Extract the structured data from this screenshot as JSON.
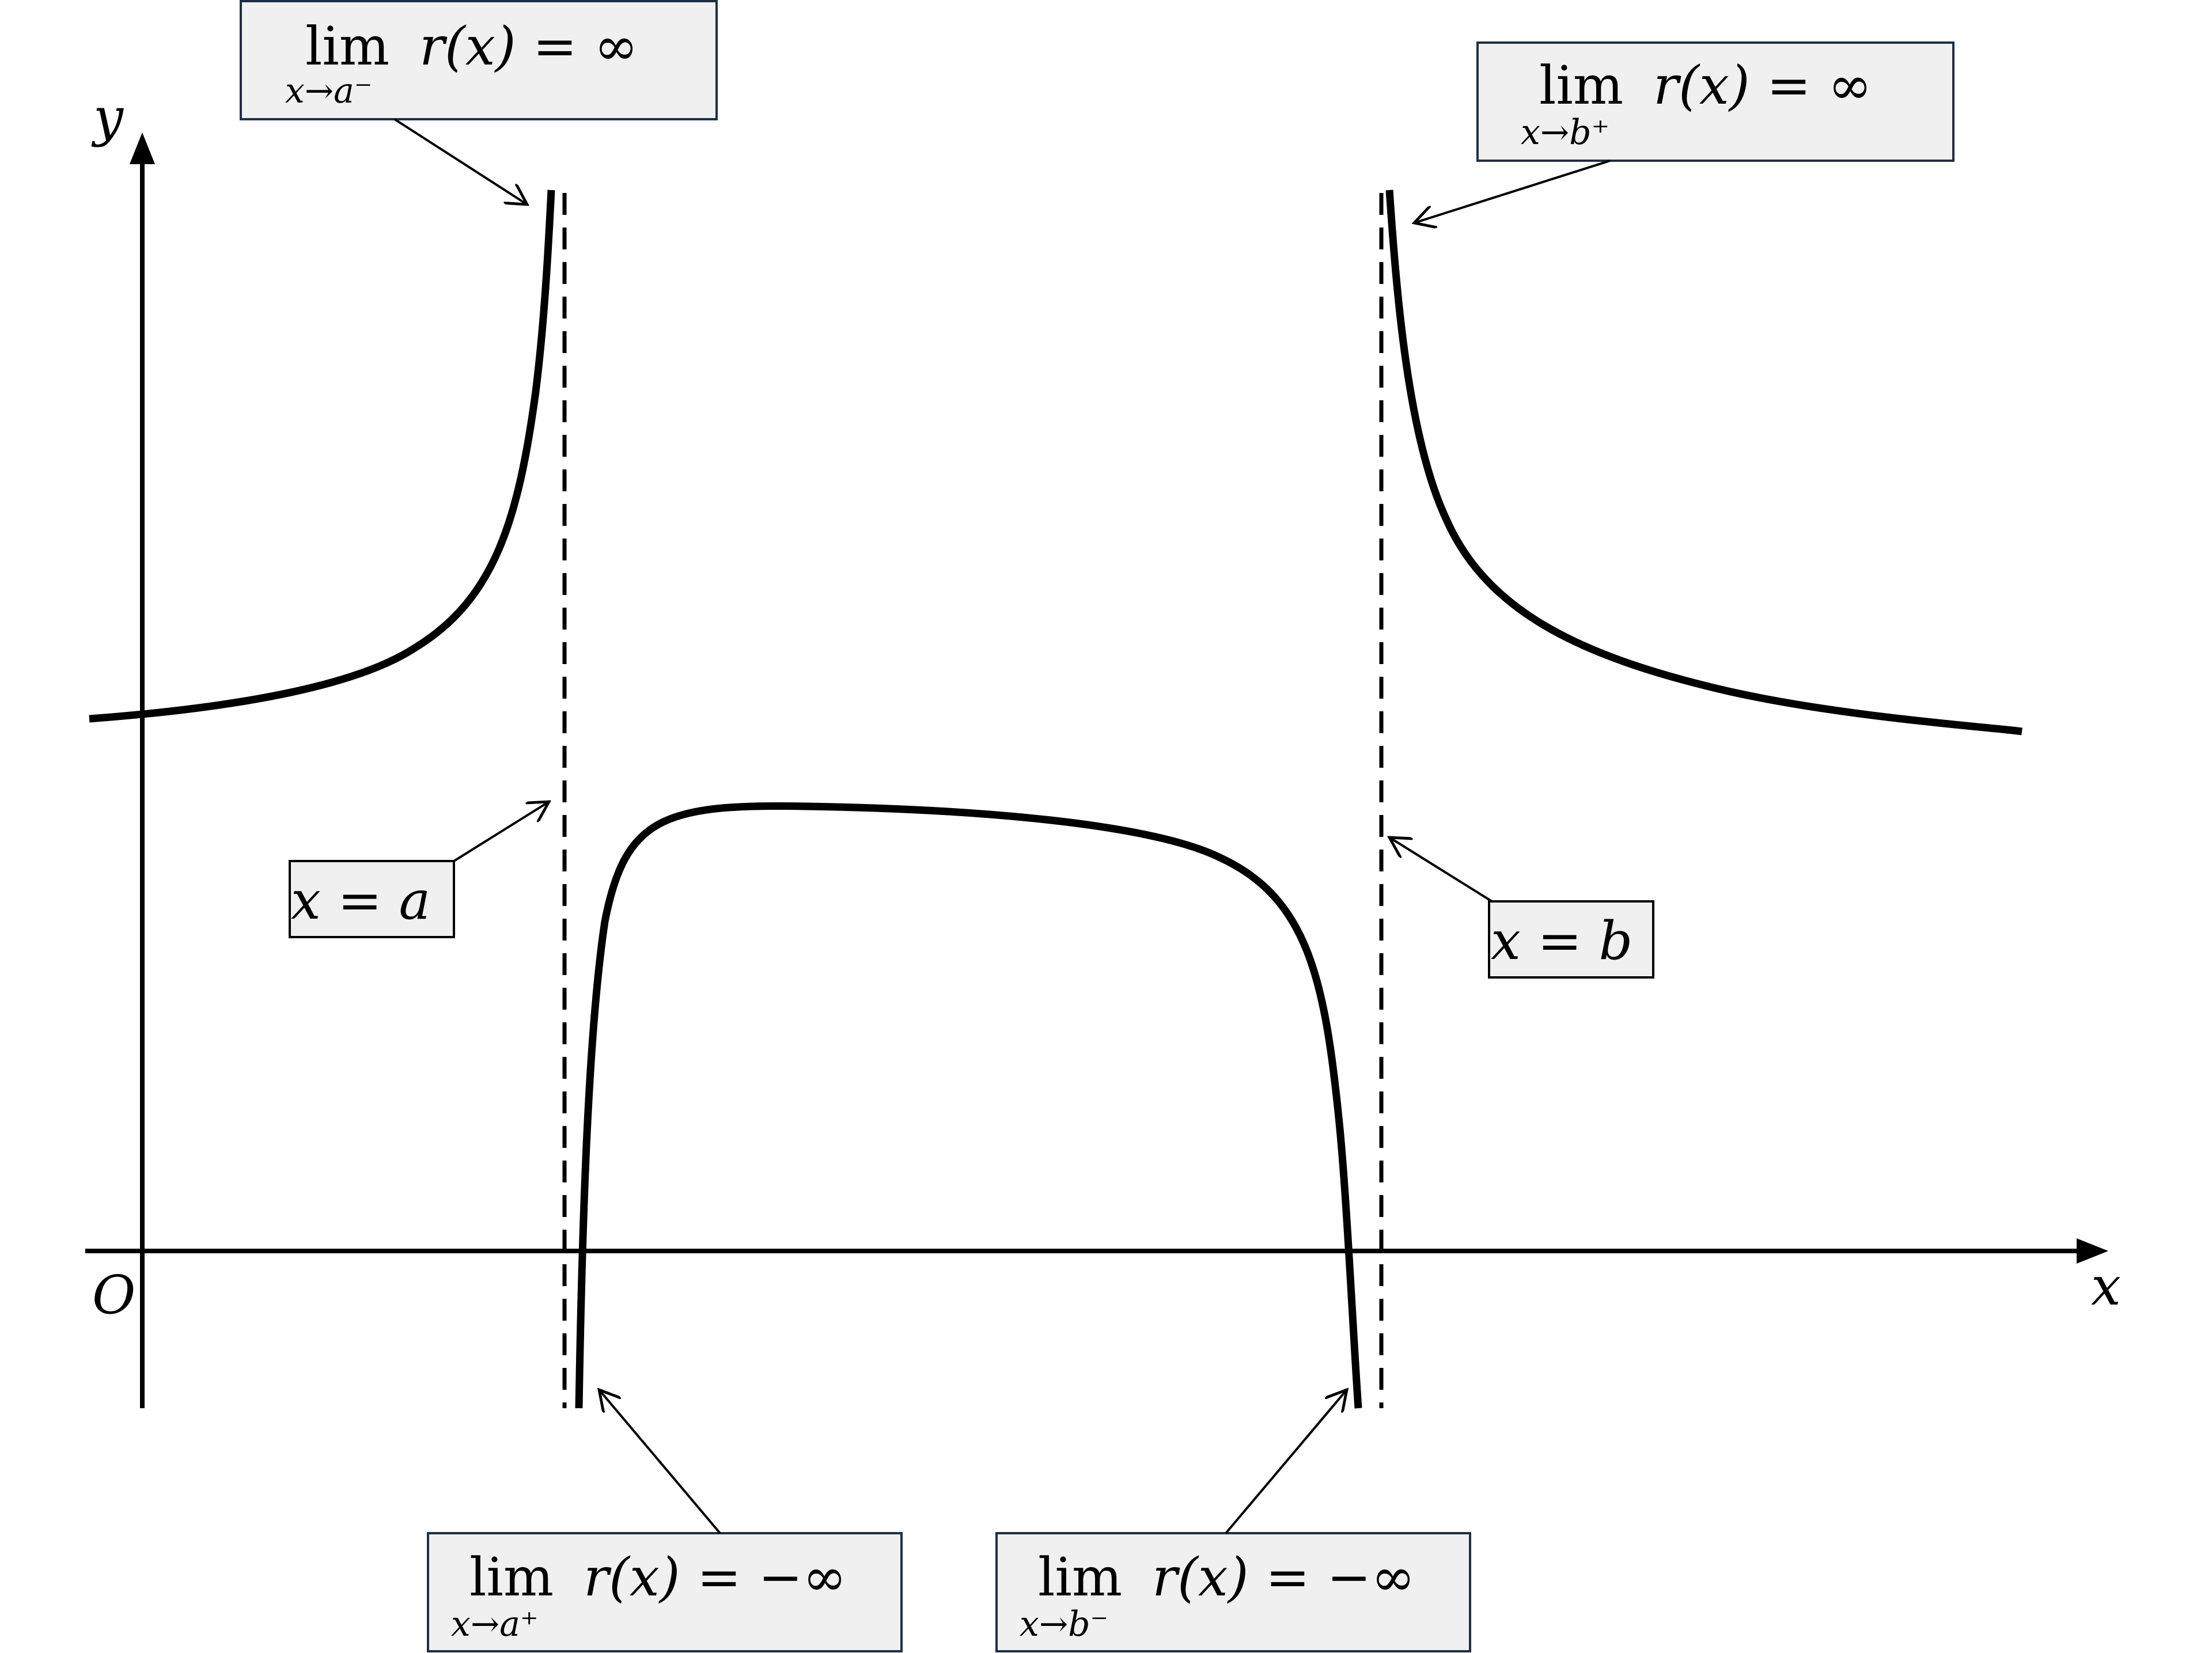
{
  "axes": {
    "y_label": "y",
    "x_label": "x",
    "origin_label": "O"
  },
  "annotations": {
    "left_upper": {
      "lim": "lim",
      "sub": "x→a⁻",
      "expr": "r(x) = ∞"
    },
    "right_upper": {
      "lim": "lim",
      "sub": "x→b⁺",
      "expr": "r(x) = ∞"
    },
    "left_lower": {
      "lim": "lim",
      "sub": "x→a⁺",
      "expr": "r(x) = −∞"
    },
    "right_lower": {
      "lim": "lim",
      "sub": "x→b⁻",
      "expr": "r(x) = −∞"
    },
    "asymptote_a": "x = a",
    "asymptote_b": "x = b"
  }
}
